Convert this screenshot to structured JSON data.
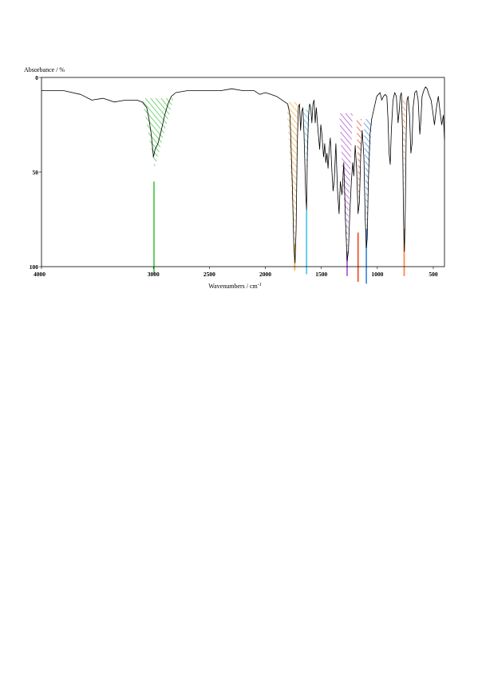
{
  "chart_data": {
    "type": "line",
    "title": "",
    "ylabel": "Absorbance / %",
    "xlabel": "Wavenumbers / cm",
    "xlabel_superscript": "-1",
    "xlim": [
      4000,
      400
    ],
    "ylim": [
      0,
      100
    ],
    "y_inverted": true,
    "grid": false,
    "x_ticks": [
      {
        "value": 4000,
        "label": "4000"
      },
      {
        "value": 3000,
        "label": "3000"
      },
      {
        "value": 2500,
        "label": "2500"
      },
      {
        "value": 2000,
        "label": "2000"
      },
      {
        "value": 1500,
        "label": "1500"
      },
      {
        "value": 1000,
        "label": "1000"
      },
      {
        "value": 500,
        "label": "500"
      }
    ],
    "y_ticks": [
      {
        "value": 0,
        "label": "0"
      },
      {
        "value": 50,
        "label": "50"
      },
      {
        "value": 100,
        "label": "100"
      }
    ],
    "series": [
      {
        "color": "#000000",
        "points": [
          [
            4000,
            7
          ],
          [
            3800,
            7
          ],
          [
            3650,
            9
          ],
          [
            3550,
            12
          ],
          [
            3450,
            11
          ],
          [
            3350,
            13
          ],
          [
            3250,
            12
          ],
          [
            3150,
            12
          ],
          [
            3100,
            13
          ],
          [
            3060,
            16
          ],
          [
            3040,
            22
          ],
          [
            3020,
            30
          ],
          [
            3000,
            42
          ],
          [
            2985,
            38
          ],
          [
            2960,
            35
          ],
          [
            2930,
            28
          ],
          [
            2900,
            20
          ],
          [
            2870,
            14
          ],
          [
            2840,
            10
          ],
          [
            2800,
            8
          ],
          [
            2700,
            7
          ],
          [
            2600,
            7
          ],
          [
            2500,
            7
          ],
          [
            2400,
            7
          ],
          [
            2300,
            6
          ],
          [
            2200,
            7
          ],
          [
            2100,
            7
          ],
          [
            2050,
            9
          ],
          [
            2000,
            8
          ],
          [
            1950,
            9
          ],
          [
            1900,
            10
          ],
          [
            1850,
            12
          ],
          [
            1800,
            14
          ],
          [
            1780,
            20
          ],
          [
            1760,
            55
          ],
          [
            1745,
            90
          ],
          [
            1735,
            98
          ],
          [
            1725,
            80
          ],
          [
            1715,
            35
          ],
          [
            1705,
            16
          ],
          [
            1695,
            14
          ],
          [
            1685,
            28
          ],
          [
            1675,
            18
          ],
          [
            1665,
            16
          ],
          [
            1655,
            30
          ],
          [
            1640,
            62
          ],
          [
            1632,
            70
          ],
          [
            1625,
            40
          ],
          [
            1615,
            20
          ],
          [
            1605,
            14
          ],
          [
            1595,
            16
          ],
          [
            1585,
            24
          ],
          [
            1575,
            14
          ],
          [
            1565,
            12
          ],
          [
            1555,
            24
          ],
          [
            1545,
            16
          ],
          [
            1530,
            28
          ],
          [
            1515,
            38
          ],
          [
            1505,
            25
          ],
          [
            1495,
            30
          ],
          [
            1480,
            42
          ],
          [
            1470,
            35
          ],
          [
            1460,
            45
          ],
          [
            1450,
            40
          ],
          [
            1440,
            48
          ],
          [
            1430,
            38
          ],
          [
            1420,
            32
          ],
          [
            1405,
            50
          ],
          [
            1395,
            60
          ],
          [
            1385,
            55
          ],
          [
            1370,
            35
          ],
          [
            1355,
            60
          ],
          [
            1342,
            72
          ],
          [
            1330,
            55
          ],
          [
            1315,
            62
          ],
          [
            1300,
            45
          ],
          [
            1285,
            75
          ],
          [
            1270,
            97
          ],
          [
            1258,
            92
          ],
          [
            1245,
            70
          ],
          [
            1232,
            55
          ],
          [
            1220,
            45
          ],
          [
            1210,
            52
          ],
          [
            1198,
            36
          ],
          [
            1185,
            48
          ],
          [
            1172,
            72
          ],
          [
            1160,
            66
          ],
          [
            1148,
            40
          ],
          [
            1135,
            28
          ],
          [
            1120,
            42
          ],
          [
            1108,
            75
          ],
          [
            1098,
            90
          ],
          [
            1090,
            85
          ],
          [
            1080,
            55
          ],
          [
            1065,
            30
          ],
          [
            1050,
            22
          ],
          [
            1035,
            18
          ],
          [
            1020,
            14
          ],
          [
            1005,
            10
          ],
          [
            990,
            9
          ],
          [
            975,
            8
          ],
          [
            960,
            12
          ],
          [
            945,
            10
          ],
          [
            930,
            9
          ],
          [
            915,
            10
          ],
          [
            905,
            22
          ],
          [
            895,
            40
          ],
          [
            885,
            46
          ],
          [
            875,
            28
          ],
          [
            860,
            12
          ],
          [
            845,
            8
          ],
          [
            830,
            10
          ],
          [
            815,
            24
          ],
          [
            805,
            18
          ],
          [
            795,
            10
          ],
          [
            785,
            8
          ],
          [
            775,
            28
          ],
          [
            765,
            78
          ],
          [
            758,
            92
          ],
          [
            750,
            70
          ],
          [
            742,
            30
          ],
          [
            735,
            12
          ],
          [
            725,
            10
          ],
          [
            712,
            20
          ],
          [
            700,
            40
          ],
          [
            690,
            35
          ],
          [
            680,
            16
          ],
          [
            665,
            8
          ],
          [
            650,
            7
          ],
          [
            635,
            12
          ],
          [
            620,
            30
          ],
          [
            610,
            22
          ],
          [
            600,
            10
          ],
          [
            585,
            7
          ],
          [
            570,
            5
          ],
          [
            555,
            6
          ],
          [
            540,
            9
          ],
          [
            520,
            12
          ],
          [
            505,
            18
          ],
          [
            490,
            25
          ],
          [
            470,
            15
          ],
          [
            455,
            10
          ],
          [
            440,
            18
          ],
          [
            425,
            25
          ],
          [
            410,
            20
          ],
          [
            400,
            33
          ]
        ]
      }
    ],
    "annotations": [
      {
        "type": "hatch",
        "color": "#55cc55",
        "x_left": 3100,
        "x_right": 2820,
        "y_top": 11,
        "x_apex": 2990,
        "y_apex": 48
      },
      {
        "type": "hatch",
        "color": "#f5b84a",
        "x_left": 1810,
        "x_right": 1700,
        "y_top": 13,
        "x_apex": 1738,
        "y_apex": 92
      },
      {
        "type": "hatch",
        "color": "#5bc8e8",
        "x_left": 1660,
        "x_right": 1600,
        "y_top": 17,
        "x_apex": 1632,
        "y_apex": 50
      },
      {
        "type": "hatch",
        "color": "#b060d8",
        "x_left": 1340,
        "x_right": 1220,
        "y_top": 19,
        "x_apex": 1270,
        "y_apex": 95
      },
      {
        "type": "hatch",
        "color": "#ee5533",
        "x_left": 1185,
        "x_right": 1140,
        "y_top": 22,
        "x_apex": 1165,
        "y_apex": 70
      },
      {
        "type": "hatch",
        "color": "#4a90e2",
        "x_left": 1120,
        "x_right": 1050,
        "y_top": 22,
        "x_apex": 1095,
        "y_apex": 82
      },
      {
        "type": "hatch",
        "color": "#ff8844",
        "x_left": 775,
        "x_right": 745,
        "y_top": 12,
        "x_apex": 760,
        "y_apex": 63
      },
      {
        "type": "marker",
        "color": "#55cc55",
        "x": 2995,
        "y_from": 55,
        "y_to": 104
      },
      {
        "type": "marker",
        "color": "#f5b84a",
        "x": 1738,
        "y_from": 88,
        "y_to": 102
      },
      {
        "type": "marker",
        "color": "#5bc8e8",
        "x": 1632,
        "y_from": 70,
        "y_to": 104
      },
      {
        "type": "marker",
        "color": "#b060d8",
        "x": 1270,
        "y_from": 92,
        "y_to": 105
      },
      {
        "type": "marker",
        "color": "#ee5533",
        "x": 1172,
        "y_from": 82,
        "y_to": 108
      },
      {
        "type": "marker",
        "color": "#4a90e2",
        "x": 1098,
        "y_from": 80,
        "y_to": 109
      },
      {
        "type": "marker",
        "color": "#ff8844",
        "x": 760,
        "y_from": 80,
        "y_to": 105
      }
    ]
  }
}
